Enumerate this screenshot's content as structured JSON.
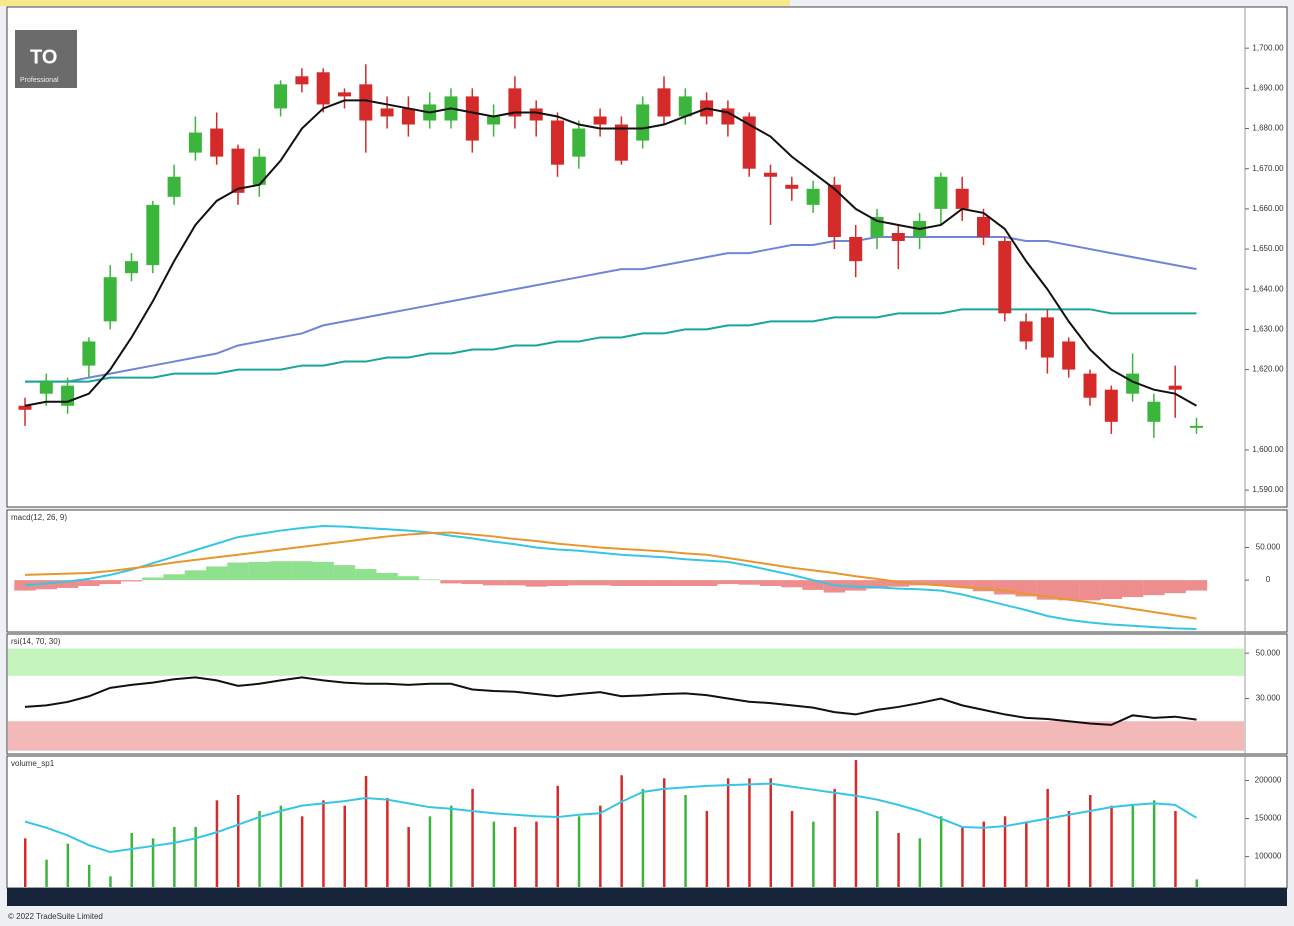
{
  "logo": {
    "text": "TO",
    "subtext": "Professional"
  },
  "footer": "© 2022 TradeSuite Limited",
  "chart_data": [
    {
      "type": "candlestick",
      "up_color": "#3cb53c",
      "down_color": "#d42a2a",
      "open": [
        1611,
        1614,
        1611,
        1621,
        1632,
        1644,
        1646,
        1663,
        1674,
        1680,
        1675,
        1666,
        1685,
        1693,
        1694,
        1689,
        1691,
        1685,
        1685,
        1682,
        1682,
        1688,
        1681,
        1690,
        1685,
        1682,
        1673,
        1683,
        1681,
        1677,
        1690,
        1683,
        1687,
        1685,
        1683,
        1669,
        1666,
        1661,
        1666,
        1653,
        1653,
        1654,
        1653,
        1660,
        1665,
        1658,
        1652,
        1632,
        1633,
        1627,
        1619,
        1615,
        1614,
        1607,
        1616,
        1605.5
      ],
      "close": [
        1610,
        1617,
        1616,
        1627,
        1643,
        1647,
        1661,
        1668,
        1679,
        1673,
        1664,
        1673,
        1691,
        1691,
        1686,
        1688,
        1682,
        1683,
        1681,
        1686,
        1688,
        1677,
        1683,
        1683,
        1682,
        1671,
        1680,
        1681,
        1672,
        1686,
        1683,
        1688,
        1683,
        1681,
        1670,
        1668,
        1665,
        1665,
        1653,
        1647,
        1658,
        1652,
        1657,
        1668,
        1660,
        1653,
        1634,
        1627,
        1623,
        1620,
        1613,
        1607,
        1619,
        1612,
        1615,
        1606
      ],
      "high": [
        1613,
        1619,
        1618,
        1628,
        1646,
        1649,
        1662,
        1671,
        1683,
        1684,
        1676,
        1675,
        1692,
        1695,
        1695,
        1690,
        1696,
        1688,
        1688,
        1689,
        1690,
        1690,
        1686,
        1693,
        1687,
        1684,
        1682,
        1685,
        1683,
        1688,
        1693,
        1690,
        1689,
        1687,
        1684,
        1671,
        1668,
        1667,
        1668,
        1656,
        1660,
        1656,
        1659,
        1669,
        1668,
        1660,
        1653,
        1634,
        1635,
        1628,
        1620,
        1616,
        1624,
        1614,
        1621,
        1608
      ],
      "low": [
        1606,
        1611,
        1609,
        1618,
        1630,
        1642,
        1644,
        1661,
        1672,
        1671,
        1661,
        1663,
        1683,
        1689,
        1684,
        1685,
        1674,
        1680,
        1678,
        1680,
        1680,
        1674,
        1678,
        1680,
        1678,
        1668,
        1670,
        1678,
        1671,
        1675,
        1681,
        1681,
        1681,
        1678,
        1668,
        1656,
        1662,
        1659,
        1650,
        1643,
        1650,
        1645,
        1650,
        1656,
        1657,
        1651,
        1632,
        1625,
        1619,
        1618,
        1611,
        1604,
        1612,
        1603,
        1608,
        1604
      ],
      "overlays": [
        {
          "color": "#111111",
          "values": [
            1611,
            1612,
            1612,
            1614,
            1620,
            1628,
            1637,
            1647,
            1656,
            1662,
            1665,
            1666,
            1672,
            1680,
            1685,
            1687,
            1687,
            1686,
            1685,
            1684,
            1685,
            1684,
            1683,
            1684,
            1684,
            1683,
            1681,
            1680,
            1680,
            1680,
            1681,
            1683,
            1685,
            1684,
            1681,
            1678,
            1673,
            1669,
            1665,
            1660,
            1657,
            1656,
            1655,
            1656,
            1660,
            1659,
            1655,
            1647,
            1640,
            1632,
            1625,
            1620,
            1617,
            1615,
            1614,
            1611
          ]
        },
        {
          "color": "#6f86d6",
          "values": [
            1617,
            1617,
            1617,
            1618,
            1619,
            1620,
            1621,
            1622,
            1623,
            1624,
            1626,
            1627,
            1628,
            1629,
            1631,
            1632,
            1633,
            1634,
            1635,
            1636,
            1637,
            1638,
            1639,
            1640,
            1641,
            1642,
            1643,
            1644,
            1645,
            1645,
            1646,
            1647,
            1648,
            1649,
            1649,
            1650,
            1651,
            1651,
            1652,
            1652,
            1653,
            1653,
            1653,
            1653,
            1653,
            1653,
            1653,
            1652,
            1652,
            1651,
            1650,
            1649,
            1648,
            1647,
            1646,
            1645
          ]
        },
        {
          "color": "#1aa59a",
          "values": [
            1617,
            1617,
            1617,
            1617,
            1618,
            1618,
            1618,
            1619,
            1619,
            1619,
            1620,
            1620,
            1620,
            1621,
            1621,
            1622,
            1622,
            1623,
            1623,
            1624,
            1624,
            1625,
            1625,
            1626,
            1626,
            1627,
            1627,
            1628,
            1628,
            1629,
            1629,
            1630,
            1630,
            1631,
            1631,
            1632,
            1632,
            1632,
            1633,
            1633,
            1633,
            1634,
            1634,
            1634,
            1635,
            1635,
            1635,
            1635,
            1635,
            1635,
            1635,
            1634,
            1634,
            1634,
            1634,
            1634
          ]
        }
      ],
      "ylim": [
        1585.8,
        1710
      ],
      "yticks": [
        {
          "value": 1700,
          "label": "1,700.00"
        },
        {
          "value": 1690,
          "label": "1,690.00"
        },
        {
          "value": 1680,
          "label": "1,680.00"
        },
        {
          "value": 1670,
          "label": "1,670.00"
        },
        {
          "value": 1660,
          "label": "1,660.00"
        },
        {
          "value": 1650,
          "label": "1,650.00"
        },
        {
          "value": 1640,
          "label": "1,640.00"
        },
        {
          "value": 1630,
          "label": "1,630.00"
        },
        {
          "value": 1620,
          "label": "1,620.00"
        },
        {
          "value": 1600,
          "label": "1,600.00"
        },
        {
          "value": 1590,
          "label": "1,590.00"
        }
      ],
      "grid": false
    },
    {
      "type": "line",
      "title": "macd(12, 26, 9)",
      "series": [
        {
          "color": "#35c6e6",
          "values": [
            -8,
            -5,
            -2,
            2,
            8,
            16,
            26,
            36,
            46,
            56,
            66,
            71,
            76,
            80,
            83,
            82,
            80,
            78,
            76,
            73,
            68,
            64,
            59,
            55,
            50,
            47,
            45,
            42,
            39,
            37,
            35,
            32,
            30,
            28,
            22,
            15,
            8,
            0,
            -8,
            -10,
            -11,
            -13,
            -14,
            -16,
            -22,
            -30,
            -38,
            -46,
            -55,
            -61,
            -65,
            -68,
            -70,
            -72,
            -74,
            -75
          ]
        },
        {
          "color": "#e8962e",
          "values": [
            8,
            9,
            10,
            11,
            14,
            18,
            22,
            27,
            31,
            35,
            39,
            43,
            47,
            51,
            55,
            59,
            63,
            67,
            70,
            72,
            73,
            70,
            67,
            63,
            60,
            56,
            53,
            50,
            48,
            46,
            44,
            41,
            39,
            34,
            29,
            24,
            19,
            15,
            11,
            6,
            2,
            -3,
            -6,
            -8,
            -11,
            -13,
            -16,
            -21,
            -25,
            -30,
            -34,
            -39,
            -44,
            -49,
            -54,
            -59
          ]
        }
      ],
      "histogram": {
        "up_color": "#8fe08f",
        "down_color": "#ee8d8d",
        "values": [
          -16,
          -14,
          -12,
          -9,
          -6,
          -2,
          4,
          9,
          15,
          21,
          27,
          28,
          29,
          29,
          28,
          23,
          17,
          11,
          6,
          1,
          -5,
          -6,
          -8,
          -8,
          -10,
          -9,
          -8,
          -8,
          -9,
          -9,
          -9,
          -9,
          -9,
          -6,
          -7,
          -9,
          -11,
          -15,
          -19,
          -16,
          -13,
          -10,
          -8,
          -8,
          -11,
          -17,
          -22,
          -25,
          -30,
          -31,
          -31,
          -29,
          -26,
          -23,
          -20,
          -16
        ]
      },
      "ylim": [
        -78,
        106
      ],
      "yticks": [
        {
          "value": 50,
          "label": "50.000"
        },
        0
      ],
      "grid": false
    },
    {
      "type": "line",
      "title": "rsi(14, 70, 30)",
      "series": [
        {
          "color": "#111111",
          "values": [
            26.3,
            27,
            28.5,
            31,
            34.7,
            36,
            37,
            38.5,
            39.3,
            38,
            35.6,
            36.5,
            38,
            39.3,
            38,
            37,
            36.5,
            36.5,
            36,
            36.5,
            36.5,
            34,
            33.3,
            33,
            32,
            31,
            32,
            32.8,
            31,
            31.4,
            32,
            32.3,
            31.5,
            30,
            28.6,
            28,
            27,
            26,
            24,
            23,
            25,
            26.3,
            28,
            30,
            27,
            25,
            23,
            21.5,
            21,
            20,
            19,
            18.4,
            22.6,
            21.5,
            22,
            20.7
          ]
        }
      ],
      "bands": [
        {
          "from": 40,
          "to": 52,
          "color": "#c5f5bd"
        },
        {
          "from": 7,
          "to": 20,
          "color": "#f3b8b8"
        }
      ],
      "ylim": [
        6,
        58
      ],
      "yticks": [
        {
          "value": 50,
          "label": "50.000"
        },
        {
          "value": 30,
          "label": "30.000"
        }
      ],
      "grid": false
    },
    {
      "type": "bar",
      "title": "volume_sp1",
      "values": [
        124000,
        96000,
        117000,
        89000,
        74000,
        131000,
        124000,
        139000,
        139000,
        174000,
        181000,
        160000,
        167000,
        153000,
        174000,
        167000,
        206000,
        177000,
        139000,
        153000,
        167000,
        189000,
        146000,
        139000,
        146000,
        193000,
        153000,
        167000,
        207000,
        189000,
        203000,
        181000,
        160000,
        203000,
        203000,
        203000,
        160000,
        146000,
        189000,
        227000,
        160000,
        131000,
        124000,
        153000,
        139000,
        146000,
        153000,
        146000,
        189000,
        160000,
        181000,
        167000,
        167000,
        174000,
        160000,
        70000
      ],
      "series": [
        {
          "color": "#35c6e6",
          "values": [
            146000,
            138000,
            128000,
            115000,
            106000,
            110000,
            114000,
            118000,
            124000,
            132000,
            142000,
            152000,
            160000,
            167000,
            170000,
            173000,
            177000,
            175000,
            170000,
            165000,
            163000,
            160000,
            157000,
            155000,
            153000,
            152000,
            155000,
            157000,
            172000,
            185000,
            189000,
            191000,
            193000,
            194000,
            195000,
            196000,
            192000,
            188000,
            184000,
            180000,
            175000,
            168000,
            160000,
            150000,
            139000,
            138000,
            140000,
            145000,
            150000,
            155000,
            160000,
            165000,
            168000,
            170000,
            168000,
            151000
          ]
        }
      ],
      "ylim": [
        60000,
        231000
      ],
      "yticks": [
        200000,
        150000,
        100000
      ],
      "grid": false
    }
  ]
}
